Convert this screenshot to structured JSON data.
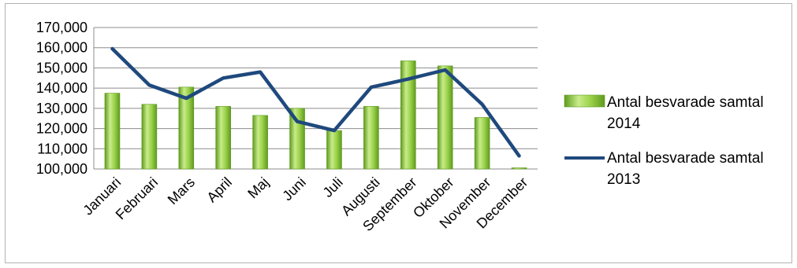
{
  "chart_data": {
    "type": "bar+line",
    "categories": [
      "Januari",
      "Februari",
      "Mars",
      "April",
      "Maj",
      "Juni",
      "Juli",
      "Augusti",
      "September",
      "Oktober",
      "November",
      "December"
    ],
    "y_ticks": [
      "170,000",
      "160,000",
      "150,000",
      "140,000",
      "130,000",
      "120,000",
      "110,000",
      "100,000"
    ],
    "ylim": [
      100000,
      170000
    ],
    "grid": true,
    "legend_position": "right",
    "series": [
      {
        "name": "Antal besvarade samtal 2014",
        "type": "bar",
        "color": "#8cc63f",
        "values": [
          137500,
          132000,
          140500,
          131000,
          126500,
          130000,
          119000,
          131000,
          153500,
          151000,
          125500,
          100000
        ]
      },
      {
        "name": "Antal besvarade samtal 2013",
        "type": "line",
        "color": "#1f497d",
        "values": [
          159500,
          141500,
          135000,
          145000,
          148000,
          123500,
          119000,
          140500,
          144500,
          149000,
          132000,
          106500
        ]
      }
    ]
  },
  "legend": {
    "bar_line1": "Antal besvarade samtal",
    "bar_line2": "2014",
    "line_line1": "Antal besvarade samtal",
    "line_line2": "2013"
  }
}
